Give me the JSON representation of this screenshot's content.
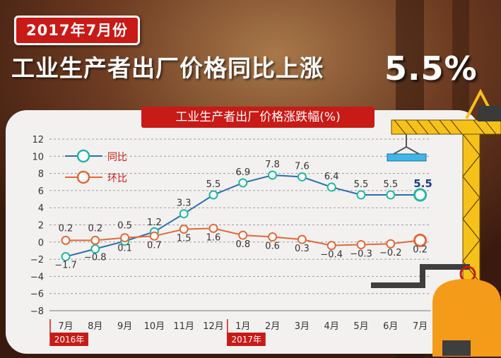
{
  "header": {
    "date_label": "2017年7月份",
    "headline_text": "工业生产者出厂价格同比上涨",
    "headline_value": "5.5%"
  },
  "colors": {
    "background_brown": "#5a2f1c",
    "banner_red": "#c81a16",
    "yoy_line": "#2a6db0",
    "yoy_marker": "#22b6a0",
    "mom_line": "#e2683a",
    "mom_marker": "#e2683a",
    "crane_yellow": "#f6c21a",
    "tank_orange": "#f49b1a"
  },
  "chart_data": {
    "type": "line",
    "title": "工业生产者出厂价格涨跌幅(%)",
    "categories": [
      "7月",
      "8月",
      "9月",
      "10月",
      "11月",
      "12月",
      "1月",
      "2月",
      "3月",
      "4月",
      "5月",
      "6月",
      "7月"
    ],
    "year_markers": [
      {
        "label": "2016年",
        "category_index": 0
      },
      {
        "label": "2017年",
        "category_index": 6
      }
    ],
    "series": [
      {
        "name": "同比",
        "color": "#2a6db0",
        "marker": "#22b6a0",
        "values": [
          -1.7,
          -0.8,
          0.1,
          1.2,
          3.3,
          5.5,
          6.9,
          7.8,
          7.6,
          6.4,
          5.5,
          5.5,
          5.5
        ],
        "labels": [
          "−1.7",
          "−0.8",
          "0.1",
          "1.2",
          "3.3",
          "5.5",
          "6.9",
          "7.8",
          "7.6",
          "6.4",
          "5.5",
          "5.5",
          "5.5"
        ]
      },
      {
        "name": "环比",
        "color": "#e2683a",
        "marker": "#e2683a",
        "values": [
          0.2,
          0.2,
          0.5,
          0.7,
          1.5,
          1.6,
          0.8,
          0.6,
          0.3,
          -0.4,
          -0.3,
          -0.2,
          0.2
        ],
        "labels": [
          "0.2",
          "0.2",
          "0.5",
          "0.7",
          "1.5",
          "1.6",
          "0.8",
          "0.6",
          "0.3",
          "−0.4",
          "−0.3",
          "−0.2",
          "0.2"
        ]
      }
    ],
    "ylim": [
      -8,
      12
    ],
    "yticks": [
      -8,
      -6,
      -4,
      -2,
      0,
      2,
      4,
      6,
      8,
      10,
      12
    ],
    "ytick_labels": [
      "−8",
      "−6",
      "−4",
      "−2",
      "0",
      "2",
      "4",
      "6",
      "8",
      "10",
      "12"
    ],
    "grid": true,
    "legend_position": "top-left"
  }
}
